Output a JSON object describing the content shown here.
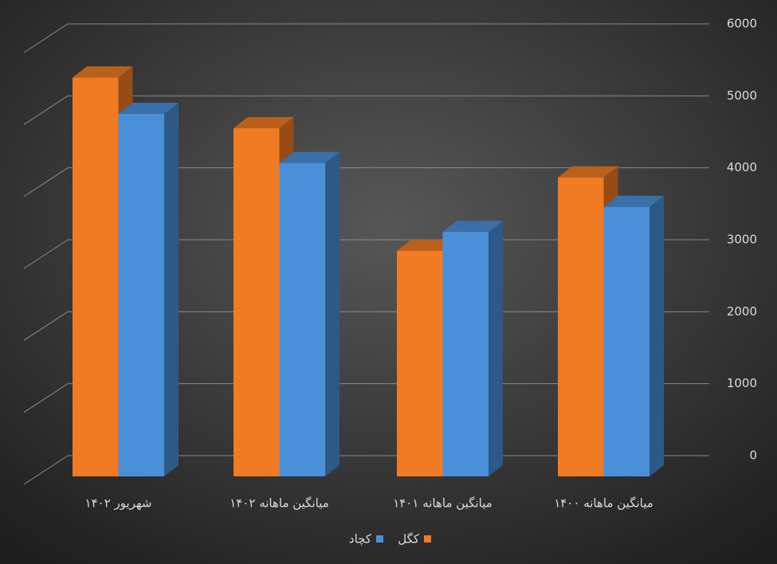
{
  "chart_data": {
    "type": "bar3d",
    "categories": [
      "شهریور ۱۴۰۲",
      "میانگین ماهانه ۱۴۰۲",
      "میانگین ماهانه ۱۴۰۱",
      "میانگین ماهانه ۱۴۰۰"
    ],
    "series": [
      {
        "name": "کگل",
        "color": "#f07b22",
        "values": [
          5270,
          4600,
          2980,
          3950
        ]
      },
      {
        "name": "کچاد",
        "color": "#4a90d9",
        "values": [
          4790,
          4140,
          3230,
          3560
        ]
      }
    ],
    "ylim": [
      0,
      6000
    ],
    "yticks": [
      0,
      1000,
      2000,
      3000,
      4000,
      5000,
      6000
    ],
    "grid": true,
    "legend": "bottom"
  }
}
